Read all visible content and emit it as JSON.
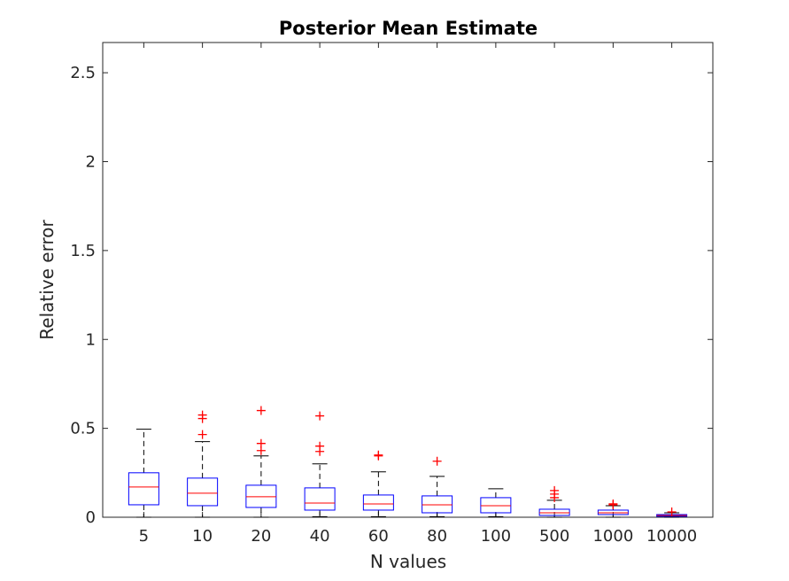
{
  "chart_data": {
    "type": "box",
    "title": "Posterior Mean Estimate",
    "xlabel": "N values",
    "ylabel": "Relative error",
    "ylim": [
      0,
      2.67
    ],
    "yticks": [
      0,
      0.5,
      1,
      1.5,
      2,
      2.5
    ],
    "ytick_labels": [
      "0",
      "0.5",
      "1",
      "1.5",
      "2",
      "2.5"
    ],
    "grid": false,
    "colors": {
      "box": "#0000ff",
      "median": "#ff0000",
      "whisker": "#000000",
      "outlier": "#ff0000"
    },
    "categories": [
      "5",
      "10",
      "20",
      "40",
      "60",
      "80",
      "100",
      "500",
      "1000",
      "10000"
    ],
    "boxes": [
      {
        "label": "5",
        "whisker_low": 0.0,
        "q1": 0.07,
        "median": 0.17,
        "q3": 0.25,
        "whisker_high": 0.495,
        "outliers": []
      },
      {
        "label": "10",
        "whisker_low": 0.0,
        "q1": 0.065,
        "median": 0.135,
        "q3": 0.22,
        "whisker_high": 0.425,
        "outliers": [
          0.465,
          0.555,
          0.575
        ]
      },
      {
        "label": "20",
        "whisker_low": 0.0,
        "q1": 0.055,
        "median": 0.115,
        "q3": 0.18,
        "whisker_high": 0.345,
        "outliers": [
          0.375,
          0.415,
          0.6
        ]
      },
      {
        "label": "40",
        "whisker_low": 0.003,
        "q1": 0.04,
        "median": 0.08,
        "q3": 0.165,
        "whisker_high": 0.3,
        "outliers": [
          0.37,
          0.4,
          0.57
        ]
      },
      {
        "label": "60",
        "whisker_low": 0.003,
        "q1": 0.04,
        "median": 0.075,
        "q3": 0.125,
        "whisker_high": 0.255,
        "outliers": [
          0.345,
          0.35
        ]
      },
      {
        "label": "80",
        "whisker_low": 0.003,
        "q1": 0.025,
        "median": 0.07,
        "q3": 0.12,
        "whisker_high": 0.23,
        "outliers": [
          0.315
        ]
      },
      {
        "label": "100",
        "whisker_low": 0.003,
        "q1": 0.025,
        "median": 0.065,
        "q3": 0.11,
        "whisker_high": 0.16,
        "outliers": []
      },
      {
        "label": "500",
        "whisker_low": 0.0,
        "q1": 0.01,
        "median": 0.025,
        "q3": 0.045,
        "whisker_high": 0.095,
        "outliers": [
          0.11,
          0.13,
          0.15
        ]
      },
      {
        "label": "1000",
        "whisker_low": 0.0,
        "q1": 0.015,
        "median": 0.025,
        "q3": 0.04,
        "whisker_high": 0.065,
        "outliers": [
          0.07,
          0.075
        ]
      },
      {
        "label": "10000",
        "whisker_low": 0.0,
        "q1": 0.005,
        "median": 0.01,
        "q3": 0.015,
        "whisker_high": 0.025,
        "outliers": [
          0.03
        ]
      }
    ]
  }
}
